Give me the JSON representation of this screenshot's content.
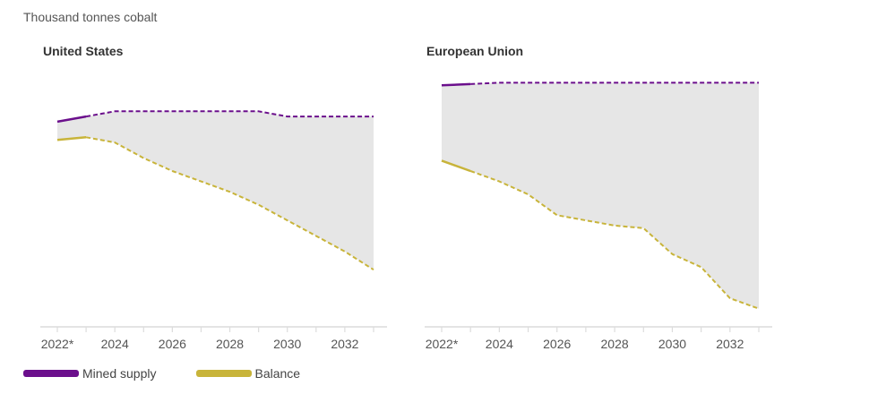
{
  "subtitle": "Thousand tonnes cobalt",
  "colors": {
    "mined": "#6b0f8c",
    "balance": "#c8b43a",
    "fill": "#e6e6e6",
    "axis": "#dcdcdc"
  },
  "legend": [
    {
      "label": "Mined supply",
      "color": "#6b0f8c"
    },
    {
      "label": "Balance",
      "color": "#c8b43a"
    }
  ],
  "chart_data": [
    {
      "type": "area",
      "title": "United States",
      "x": [
        2022,
        2023,
        2024,
        2025,
        2026,
        2027,
        2028,
        2029,
        2030,
        2031,
        2032,
        2033
      ],
      "x_tick_values": [
        2022,
        2024,
        2026,
        2028,
        2030,
        2032
      ],
      "x_tick_labels": [
        "2022*",
        "2024",
        "2026",
        "2028",
        "2030",
        "2032"
      ],
      "ylim": [
        0,
        10
      ],
      "projection_start": 2023,
      "series": [
        {
          "name": "Mined supply",
          "values": [
            7.9,
            8.1,
            8.3,
            8.3,
            8.3,
            8.3,
            8.3,
            8.3,
            8.1,
            8.1,
            8.1,
            8.1
          ]
        },
        {
          "name": "Balance",
          "values": [
            7.2,
            7.3,
            7.1,
            6.5,
            6.0,
            5.6,
            5.2,
            4.7,
            4.1,
            3.5,
            2.9,
            2.2
          ]
        }
      ]
    },
    {
      "type": "area",
      "title": "European Union",
      "x": [
        2022,
        2023,
        2024,
        2025,
        2026,
        2027,
        2028,
        2029,
        2030,
        2031,
        2032,
        2033
      ],
      "x_tick_values": [
        2022,
        2024,
        2026,
        2028,
        2030,
        2032
      ],
      "x_tick_labels": [
        "2022*",
        "2024",
        "2026",
        "2028",
        "2030",
        "2032"
      ],
      "ylim": [
        0,
        10
      ],
      "projection_start": 2023,
      "series": [
        {
          "name": "Mined supply",
          "values": [
            9.3,
            9.35,
            9.4,
            9.4,
            9.4,
            9.4,
            9.4,
            9.4,
            9.4,
            9.4,
            9.4,
            9.4
          ]
        },
        {
          "name": "Balance",
          "values": [
            6.4,
            6.0,
            5.6,
            5.1,
            4.3,
            4.1,
            3.9,
            3.8,
            2.8,
            2.3,
            1.1,
            0.7
          ]
        }
      ]
    }
  ]
}
